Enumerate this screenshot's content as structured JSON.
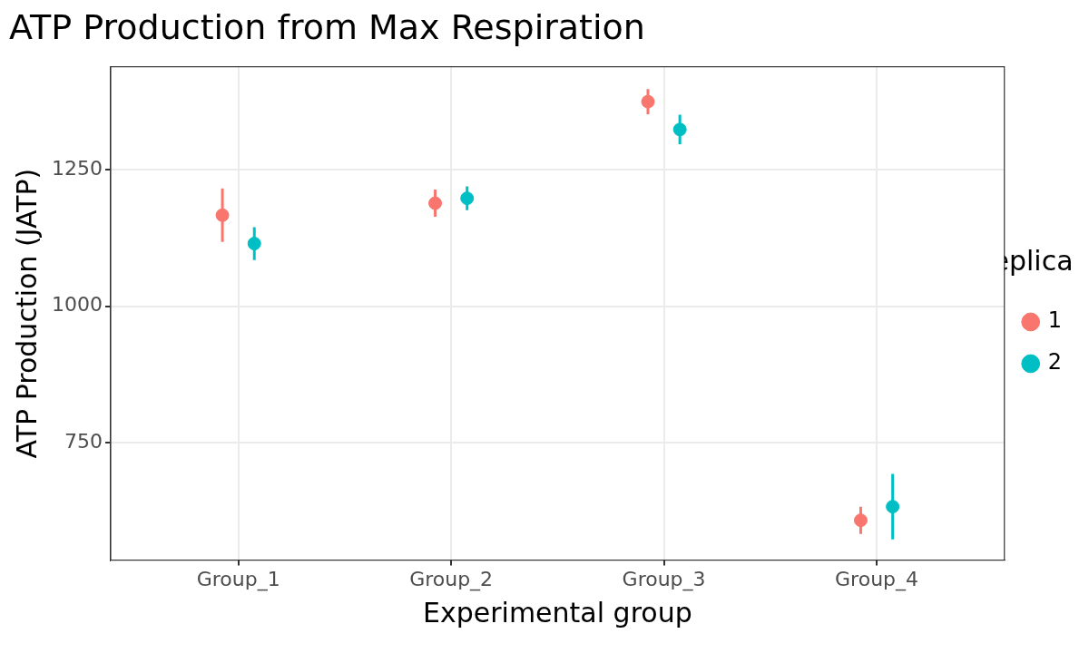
{
  "chart_data": {
    "type": "scatter",
    "title": "ATP Production from Max Respiration",
    "x_label": "Experimental group",
    "y_label": "ATP Production (JATP)",
    "legend_title": "Replicate",
    "legend": "right",
    "grid": true,
    "categories": [
      "Group_1",
      "Group_2",
      "Group_3",
      "Group_4"
    ],
    "series": [
      {
        "name": "1",
        "color": "#F8766D",
        "marker": "circle",
        "values": [
          1167,
          1189,
          1375,
          608
        ],
        "errors": [
          49,
          25,
          23,
          25
        ]
      },
      {
        "name": "2",
        "color": "#00BFC4",
        "marker": "circle",
        "values": [
          1115,
          1198,
          1324,
          633
        ],
        "errors": [
          30,
          22,
          27,
          60
        ]
      }
    ],
    "ylim": [
      535,
      1439
    ],
    "yticks": [
      750,
      1000,
      1250
    ]
  }
}
